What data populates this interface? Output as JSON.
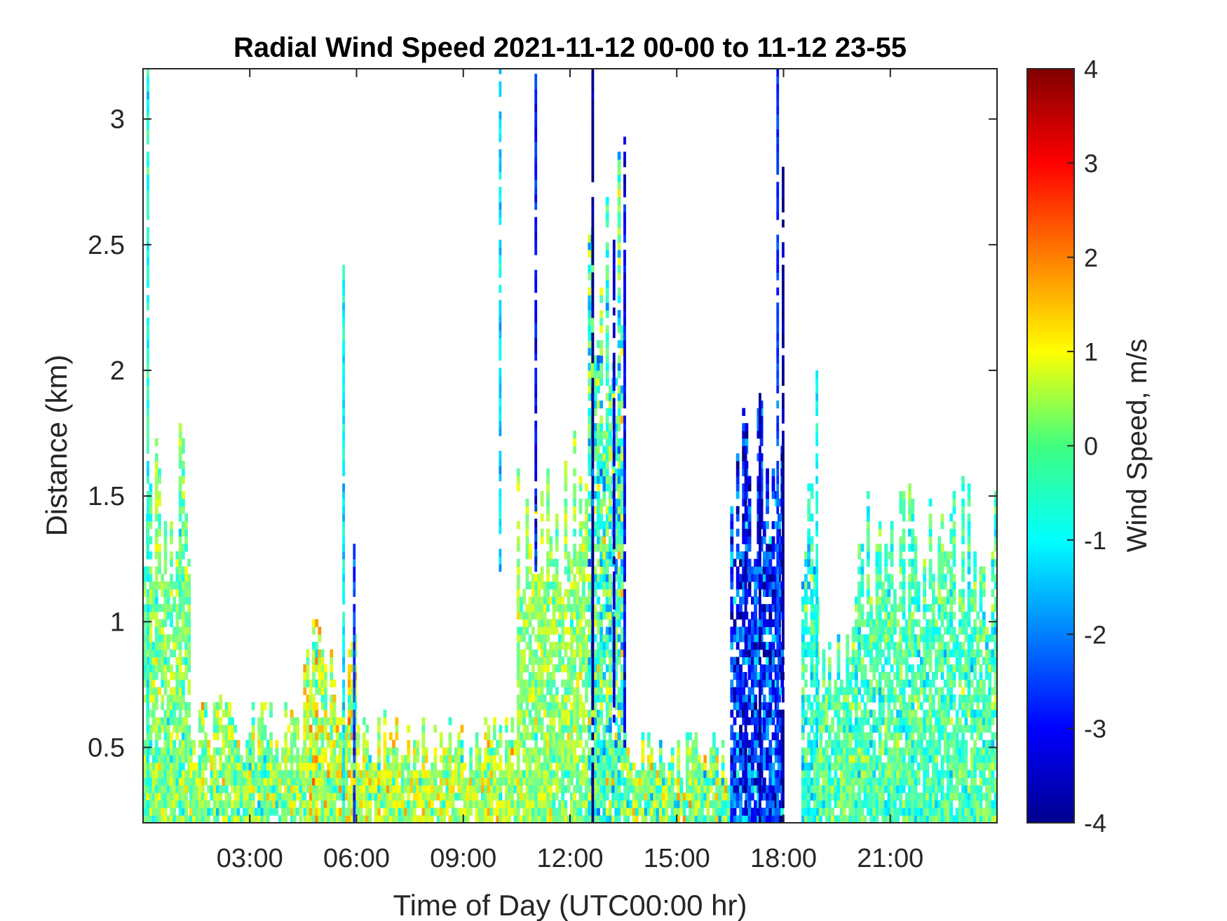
{
  "chart_data": {
    "type": "heatmap",
    "title": "Radial Wind Speed 2021-11-12 00-00 to 11-12 23-55",
    "xlabel": "Time of Day (UTC00:00 hr)",
    "ylabel": "Distance (km)",
    "xlim_hours": [
      0,
      24
    ],
    "ylim_km": [
      0.2,
      3.2
    ],
    "x_ticks": [
      {
        "value": 3,
        "label": "03:00"
      },
      {
        "value": 6,
        "label": "06:00"
      },
      {
        "value": 9,
        "label": "09:00"
      },
      {
        "value": 12,
        "label": "12:00"
      },
      {
        "value": 15,
        "label": "15:00"
      },
      {
        "value": 18,
        "label": "18:00"
      },
      {
        "value": 21,
        "label": "21:00"
      }
    ],
    "y_ticks": [
      {
        "value": 0.5,
        "label": "0.5"
      },
      {
        "value": 1,
        "label": "1"
      },
      {
        "value": 1.5,
        "label": "1.5"
      },
      {
        "value": 2,
        "label": "2"
      },
      {
        "value": 2.5,
        "label": "2.5"
      },
      {
        "value": 3,
        "label": "3"
      }
    ],
    "colorbar": {
      "label": "Wind Speed, m/s",
      "colormap": "jet",
      "range": [
        -4,
        4
      ],
      "ticks": [
        {
          "value": 4,
          "label": "4"
        },
        {
          "value": 3,
          "label": "3"
        },
        {
          "value": 2,
          "label": "2"
        },
        {
          "value": 1,
          "label": "1"
        },
        {
          "value": 0,
          "label": "0"
        },
        {
          "value": -1,
          "label": "-1"
        },
        {
          "value": -2,
          "label": "-2"
        },
        {
          "value": -3,
          "label": "-3"
        },
        {
          "value": -4,
          "label": "-4"
        }
      ]
    },
    "regions": [
      {
        "t_start": 0.0,
        "t_end": 1.3,
        "top_km": 1.5,
        "mean_ms": 0.0,
        "spread_ms": 0.7
      },
      {
        "t_start": 1.3,
        "t_end": 4.5,
        "top_km": 0.55,
        "mean_ms": 0.1,
        "spread_ms": 0.8
      },
      {
        "t_start": 4.5,
        "t_end": 6.0,
        "top_km": 0.8,
        "mean_ms": 0.6,
        "spread_ms": 0.9
      },
      {
        "t_start": 6.0,
        "t_end": 10.5,
        "top_km": 0.5,
        "mean_ms": 0.4,
        "spread_ms": 0.8
      },
      {
        "t_start": 10.5,
        "t_end": 12.5,
        "top_km": 1.4,
        "mean_ms": 0.2,
        "spread_ms": 0.6
      },
      {
        "t_start": 12.5,
        "t_end": 13.5,
        "top_km": 2.3,
        "mean_ms": -0.4,
        "spread_ms": 1.0
      },
      {
        "t_start": 13.5,
        "t_end": 16.5,
        "top_km": 0.45,
        "mean_ms": 0.0,
        "spread_ms": 0.9
      },
      {
        "t_start": 16.5,
        "t_end": 18.0,
        "top_km": 1.5,
        "mean_ms": -2.6,
        "spread_ms": 1.0
      },
      {
        "t_start": 18.5,
        "t_end": 19.0,
        "top_km": 1.3,
        "mean_ms": -0.6,
        "spread_ms": 0.7
      },
      {
        "t_start": 19.0,
        "t_end": 20.0,
        "top_km": 0.9,
        "mean_ms": -0.3,
        "spread_ms": 0.6
      },
      {
        "t_start": 20.0,
        "t_end": 24.0,
        "top_km": 1.25,
        "mean_ms": -0.4,
        "spread_ms": 0.6
      }
    ],
    "streaks": [
      {
        "t": 12.6,
        "bottom_km": 0.2,
        "top_km": 3.2,
        "value_ms": -4.0
      },
      {
        "t": 13.2,
        "bottom_km": 0.6,
        "top_km": 2.5,
        "value_ms": -3.4
      },
      {
        "t": 13.5,
        "bottom_km": 0.5,
        "top_km": 2.9,
        "value_ms": -3.0
      },
      {
        "t": 11.0,
        "bottom_km": 1.2,
        "top_km": 3.2,
        "value_ms": -2.8
      },
      {
        "t": 10.0,
        "bottom_km": 1.2,
        "top_km": 3.2,
        "value_ms": -1.3
      },
      {
        "t": 17.8,
        "bottom_km": 0.2,
        "top_km": 3.2,
        "value_ms": -2.5
      },
      {
        "t": 17.95,
        "bottom_km": 0.2,
        "top_km": 2.8,
        "value_ms": -3.8
      },
      {
        "t": 17.3,
        "bottom_km": 0.2,
        "top_km": 1.9,
        "value_ms": -3.7
      },
      {
        "t": 16.9,
        "bottom_km": 0.2,
        "top_km": 1.7,
        "value_ms": -3.4
      },
      {
        "t": 5.9,
        "bottom_km": 0.2,
        "top_km": 1.3,
        "value_ms": -2.5
      },
      {
        "t": 5.6,
        "bottom_km": 0.2,
        "top_km": 2.4,
        "value_ms": -1.0
      },
      {
        "t": 18.9,
        "bottom_km": 0.5,
        "top_km": 2.0,
        "value_ms": -1.0
      },
      {
        "t": 0.1,
        "bottom_km": 0.2,
        "top_km": 3.2,
        "value_ms": -0.8
      }
    ]
  }
}
